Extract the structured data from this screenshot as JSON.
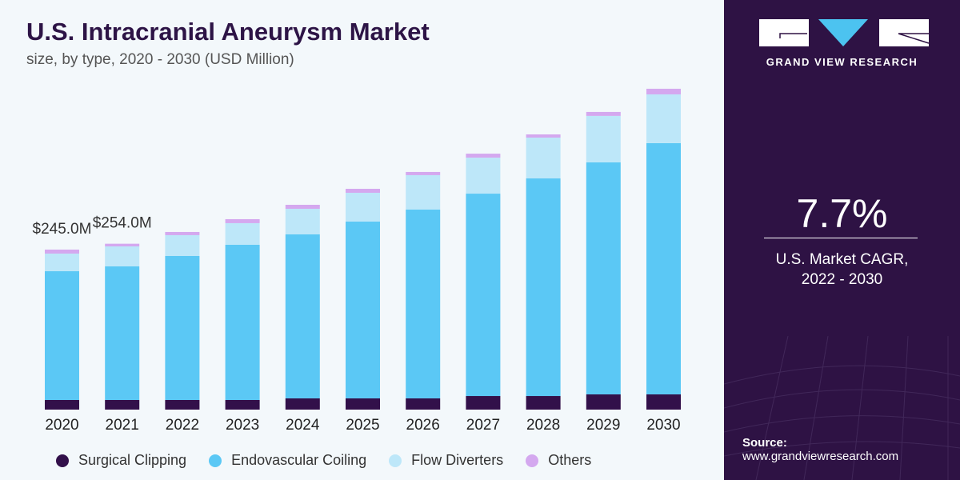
{
  "title": "U.S. Intracranial Aneurysm Market",
  "subtitle": "size, by type, 2020 - 2030 (USD Million)",
  "brand": {
    "name": "GRAND VIEW RESEARCH"
  },
  "cagr": {
    "value": "7.7%",
    "label_line1": "U.S. Market CAGR,",
    "label_line2": "2022 - 2030"
  },
  "source": {
    "label": "Source:",
    "url": "www.grandviewresearch.com"
  },
  "colors": {
    "Surgical Clipping": "#32104a",
    "Endovascular Coiling": "#5bc8f5",
    "Flow Diverters": "#bde7f9",
    "Others": "#d4a8ef",
    "panel": "#2e1244"
  },
  "chart_data": {
    "type": "bar",
    "stacked": true,
    "title": "U.S. Intracranial Aneurysm Market",
    "subtitle": "size, by type, 2020 - 2030 (USD Million)",
    "categories": [
      "2020",
      "2021",
      "2022",
      "2023",
      "2024",
      "2025",
      "2026",
      "2027",
      "2028",
      "2029",
      "2030"
    ],
    "series": [
      {
        "name": "Surgical Clipping",
        "values": [
          14.7,
          14.7,
          14.7,
          14.7,
          17.2,
          17.2,
          17.2,
          20.8,
          20.8,
          23.3,
          23.3
        ]
      },
      {
        "name": "Endovascular Coiling",
        "values": [
          197.2,
          204.6,
          220.5,
          237.7,
          251.1,
          270.7,
          289.1,
          309.9,
          333.2,
          355.3,
          384.7
        ]
      },
      {
        "name": "Flow Diverters",
        "values": [
          27.0,
          30.6,
          31.9,
          33.1,
          39.2,
          44.1,
          52.7,
          55.1,
          62.5,
          71.1,
          74.7
        ]
      },
      {
        "name": "Others",
        "values": [
          6.1,
          4.1,
          4.9,
          6.1,
          6.1,
          6.1,
          4.9,
          6.1,
          4.9,
          6.1,
          8.6
        ]
      }
    ],
    "annotations": [
      {
        "category": "2020",
        "text": "$245.0M"
      },
      {
        "category": "2021",
        "text": "$254.0M"
      }
    ],
    "legend": "bottom",
    "grid": false,
    "y_axis_visible": false
  }
}
